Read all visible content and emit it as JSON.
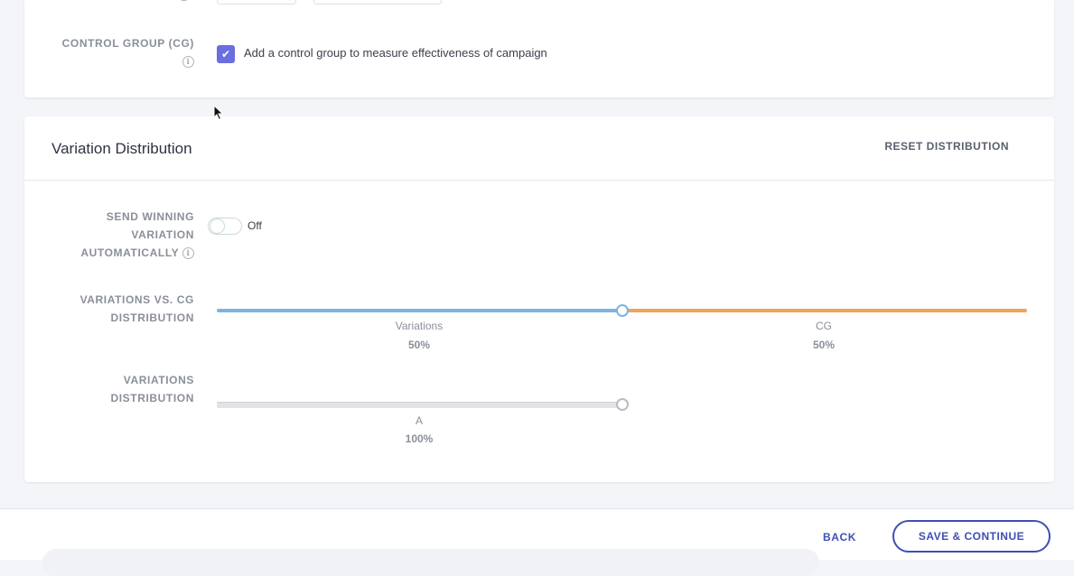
{
  "control_group": {
    "label": "CONTROL GROUP (CG)",
    "checkbox_checked": true,
    "checkbox_label": "Add a control group to measure effectiveness of campaign"
  },
  "variation_distribution": {
    "title": "Variation Distribution",
    "reset_label": "RESET DISTRIBUTION",
    "send_winning": {
      "label_line1": "SEND WINNING",
      "label_line2": "VARIATION",
      "label_line3": "AUTOMATICALLY",
      "toggle_state": "Off"
    },
    "variations_vs_cg": {
      "label_line1": "VARIATIONS VS. CG",
      "label_line2": "DISTRIBUTION",
      "split_fraction": 0.5,
      "segments": [
        {
          "name": "Variations",
          "value": "50%",
          "color": "#7fb2e0"
        },
        {
          "name": "CG",
          "value": "50%",
          "color": "#f0a35a"
        }
      ]
    },
    "variations_distribution": {
      "label_line1": "VARIATIONS",
      "label_line2": "DISTRIBUTION",
      "segments": [
        {
          "name": "A",
          "value": "100%"
        }
      ]
    }
  },
  "footer": {
    "back_label": "BACK",
    "save_label": "SAVE & CONTINUE"
  },
  "colors": {
    "accent": "#3f4fb3",
    "checkbox": "#6a6ee0",
    "variations_track": "#7fb2e0",
    "cg_track": "#f0a35a"
  }
}
